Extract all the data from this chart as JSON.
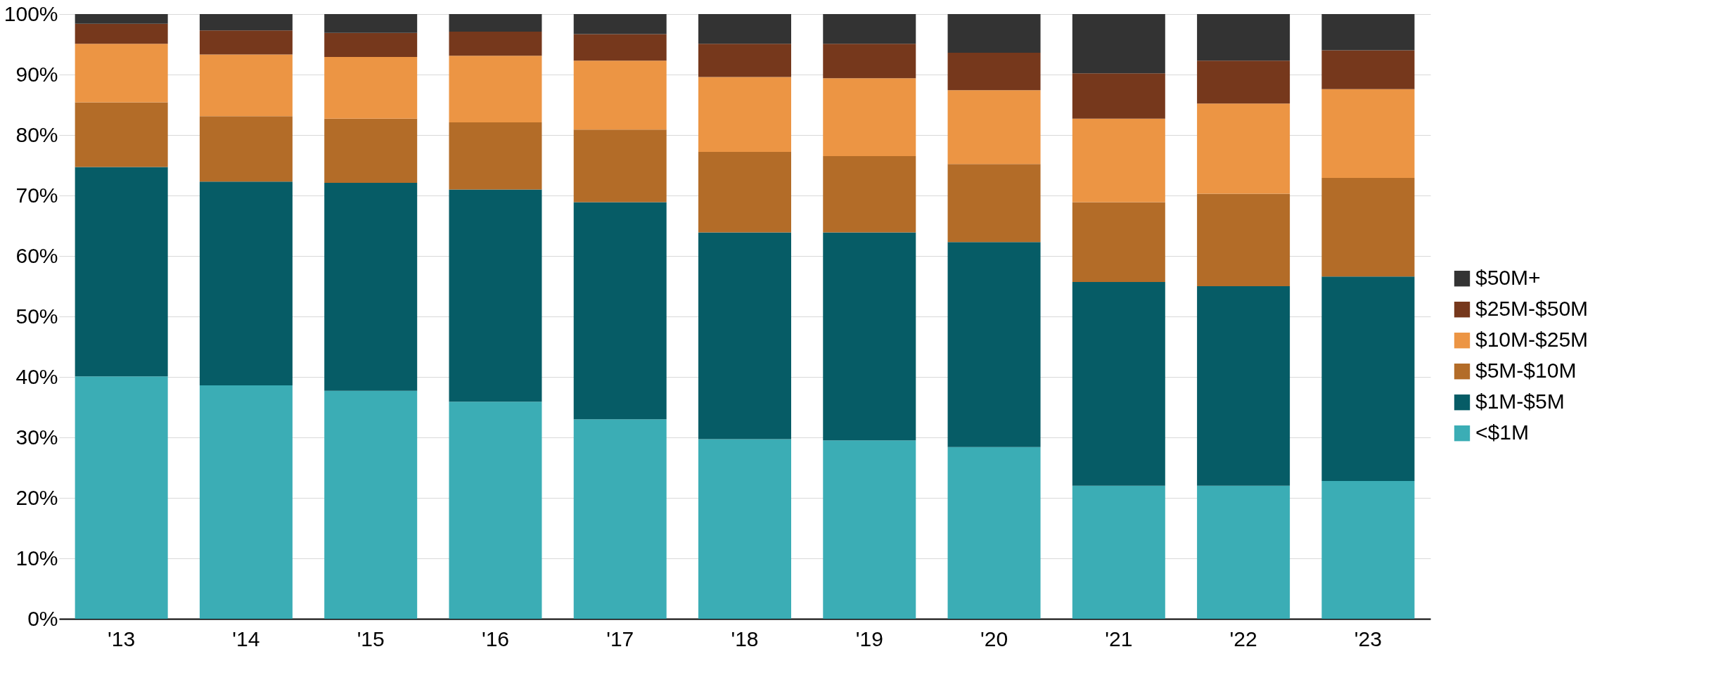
{
  "chart_data": {
    "type": "bar",
    "stacked": true,
    "categories": [
      "'13",
      "'14",
      "'15",
      "'16",
      "'17",
      "'18",
      "'19",
      "'20",
      "'21",
      "'22",
      "'23"
    ],
    "series": [
      {
        "name": "<$1M",
        "color": "#3badb5",
        "values": [
          40.1,
          38.6,
          37.7,
          35.9,
          33.0,
          29.7,
          29.5,
          28.4,
          22.0,
          22.0,
          22.8
        ]
      },
      {
        "name": "$1M-$5M",
        "color": "#065c66",
        "values": [
          34.6,
          33.7,
          34.4,
          35.1,
          35.9,
          34.2,
          34.4,
          33.9,
          33.7,
          33.0,
          33.8
        ]
      },
      {
        "name": "$5M-$10M",
        "color": "#b36c28",
        "values": [
          10.7,
          10.8,
          10.6,
          11.1,
          12.0,
          13.3,
          12.6,
          12.9,
          13.2,
          15.3,
          16.3
        ]
      },
      {
        "name": "$10M-$25M",
        "color": "#ec9544",
        "values": [
          9.7,
          10.2,
          10.2,
          11.0,
          11.4,
          12.4,
          12.9,
          12.2,
          13.8,
          14.9,
          14.7
        ]
      },
      {
        "name": "$25M-$50M",
        "color": "#76381c",
        "values": [
          3.3,
          4.0,
          4.0,
          4.0,
          4.4,
          5.5,
          5.7,
          6.2,
          7.5,
          7.1,
          6.4
        ]
      },
      {
        "name": "$50M+",
        "color": "#333333",
        "values": [
          1.6,
          2.7,
          3.1,
          2.9,
          3.3,
          4.9,
          4.9,
          6.4,
          9.8,
          7.7,
          6.0
        ]
      }
    ],
    "ylim": [
      0,
      100
    ],
    "yticks": [
      {
        "value": 0,
        "label": "0%"
      },
      {
        "value": 10,
        "label": "10%"
      },
      {
        "value": 20,
        "label": "20%"
      },
      {
        "value": 30,
        "label": "30%"
      },
      {
        "value": 40,
        "label": "40%"
      },
      {
        "value": 50,
        "label": "50%"
      },
      {
        "value": 60,
        "label": "60%"
      },
      {
        "value": 70,
        "label": "70%"
      },
      {
        "value": 80,
        "label": "80%"
      },
      {
        "value": 90,
        "label": "90%"
      },
      {
        "value": 100,
        "label": "100%"
      }
    ],
    "grid": "y",
    "legend": "right"
  }
}
